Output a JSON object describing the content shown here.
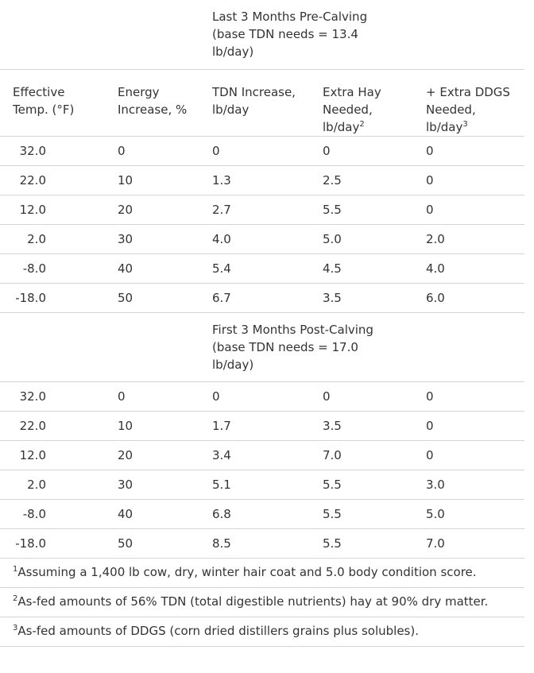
{
  "table": {
    "columns": [
      {
        "lines": [
          "Effective",
          "Temp. (°F)"
        ]
      },
      {
        "lines": [
          "Energy",
          "Increase, %"
        ]
      },
      {
        "lines": [
          "TDN Increase,",
          "lb/day"
        ]
      },
      {
        "lines": [
          "Extra Hay",
          "Needed,",
          "lb/day"
        ],
        "sup": "2"
      },
      {
        "lines": [
          "+ Extra DDGS",
          "Needed,",
          "lb/day"
        ],
        "sup": "3"
      }
    ],
    "sections": [
      {
        "lines": [
          "Last 3 Months Pre-Calving",
          "(base TDN needs = 13.4",
          "lb/day)"
        ],
        "rows": [
          [
            "32.0",
            "0",
            "0",
            "0",
            "0"
          ],
          [
            "22.0",
            "10",
            "1.3",
            "2.5",
            "0"
          ],
          [
            "12.0",
            "20",
            "2.7",
            "5.5",
            "0"
          ],
          [
            "2.0",
            "30",
            "4.0",
            "5.0",
            "2.0"
          ],
          [
            "-8.0",
            "40",
            "5.4",
            "4.5",
            "4.0"
          ],
          [
            "-18.0",
            "50",
            "6.7",
            "3.5",
            "6.0"
          ]
        ]
      },
      {
        "lines": [
          "First 3 Months Post-Calving",
          "(base TDN needs = 17.0",
          "lb/day)"
        ],
        "rows": [
          [
            "32.0",
            "0",
            "0",
            "0",
            "0"
          ],
          [
            "22.0",
            "10",
            "1.7",
            "3.5",
            "0"
          ],
          [
            "12.0",
            "20",
            "3.4",
            "7.0",
            "0"
          ],
          [
            "2.0",
            "30",
            "5.1",
            "5.5",
            "3.0"
          ],
          [
            "-8.0",
            "40",
            "6.8",
            "5.5",
            "5.0"
          ],
          [
            "-18.0",
            "50",
            "8.5",
            "5.5",
            "7.0"
          ]
        ]
      }
    ],
    "footnotes": [
      {
        "mark": "1",
        "text": "Assuming a 1,400 lb cow, dry, winter hair coat and 5.0 body condition score."
      },
      {
        "mark": "2",
        "text": "As-fed amounts of 56% TDN (total digestible nutrients) hay at 90% dry matter."
      },
      {
        "mark": "3",
        "text": "As-fed amounts of DDGS (corn dried distillers grains plus solubles)."
      }
    ]
  }
}
